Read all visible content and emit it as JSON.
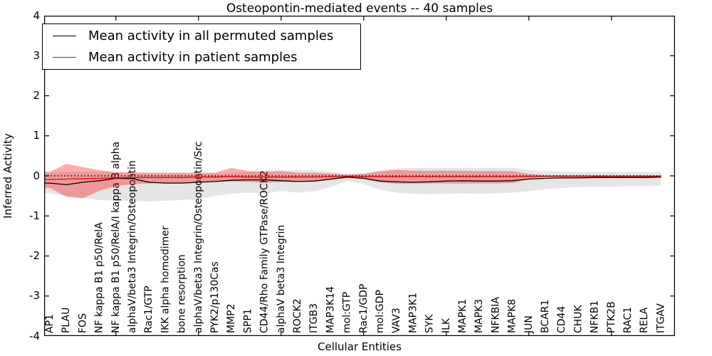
{
  "title": "Osteopontin-mediated events -- 40 samples",
  "axes": {
    "ylabel": "Inferred Activity",
    "xlabel": "Cellular Entities",
    "ytick_labels": [
      "4",
      "3",
      "2",
      "1",
      "0",
      "-1",
      "-2",
      "-3",
      "-4"
    ]
  },
  "legend": {
    "entries": [
      {
        "label": "Mean activity in all permuted samples",
        "color": "#000000"
      },
      {
        "label": "Mean activity in patient samples",
        "color": "#ff0000"
      }
    ]
  },
  "colors": {
    "permuted_line": "#000000",
    "patient_line": "#ff0000",
    "permuted_band": "rgba(0,0,0,0.10)",
    "patient_band": "rgba(255,0,0,0.33)",
    "zero_line": "#000000",
    "background": "#ffffff"
  },
  "chart_data": {
    "type": "line",
    "title": "Osteopontin-mediated events -- 40 samples",
    "xlabel": "Cellular Entities",
    "ylabel": "Inferred Activity",
    "ylim": [
      -4,
      4
    ],
    "yticks": [
      4,
      3,
      2,
      1,
      0,
      -1,
      -2,
      -3,
      -4
    ],
    "ytick_labels": [
      "4",
      "3",
      "2",
      "1",
      "0",
      "-1",
      "-2",
      "-3",
      "-4"
    ],
    "grid": false,
    "legend_position": "upper left",
    "zero_line": {
      "y": 0,
      "style": "dotted",
      "color": "#000000"
    },
    "x_top_tick_indices": [
      4,
      9,
      14,
      19,
      24,
      29,
      34
    ],
    "categories": [
      "AP1",
      "PLAU",
      "FOS",
      "NF kappa B1 p50/RelA",
      "NF kappa B1 p50/RelA/I kappa B alpha",
      "alphaV/beta3 Integrin/Osteopontin",
      "Rac1/GTP",
      "IKK alpha homodimer",
      "bone resorption",
      "alphaV/beta3 Integrin/Osteopontin/Src",
      "PYK2/p130Cas",
      "MMP2",
      "SPP1",
      "CD44/Rho Family GTPase/ROCK2",
      "alphaV beta3 Integrin",
      "ROCK2",
      "ITGB3",
      "MAP3K14",
      "mol:GTP",
      "Rac1/GDP",
      "mol:GDP",
      "VAV3",
      "MAP3K1",
      "SYK",
      "ILK",
      "MAPK1",
      "MAPK3",
      "NFKBIA",
      "MAPK8",
      "JUN",
      "BCAR1",
      "CD44",
      "CHUK",
      "NFKB1",
      "PTK2B",
      "RAC1",
      "RELA",
      "ITGAV"
    ],
    "series": [
      {
        "name": "Mean activity in all permuted samples",
        "color": "#000000",
        "band_color": "rgba(0,0,0,0.10)",
        "values": [
          -0.18,
          -0.22,
          -0.16,
          -0.12,
          -0.06,
          -0.07,
          -0.16,
          -0.18,
          -0.18,
          -0.16,
          -0.14,
          -0.11,
          -0.1,
          -0.1,
          -0.12,
          -0.14,
          -0.13,
          -0.08,
          -0.03,
          -0.06,
          -0.13,
          -0.15,
          -0.16,
          -0.15,
          -0.13,
          -0.12,
          -0.13,
          -0.13,
          -0.12,
          -0.08,
          -0.06,
          -0.05,
          -0.05,
          -0.04,
          -0.04,
          -0.04,
          -0.04,
          -0.03
        ],
        "band_upper": [
          0.07,
          0.1,
          0.1,
          0.1,
          0.08,
          0.06,
          0.05,
          0.05,
          0.05,
          0.06,
          0.06,
          0.07,
          0.1,
          0.13,
          0.14,
          0.14,
          0.14,
          0.1,
          0.05,
          0.07,
          0.15,
          0.18,
          0.2,
          0.2,
          0.2,
          0.2,
          0.2,
          0.2,
          0.2,
          0.15,
          0.12,
          0.11,
          0.1,
          0.1,
          0.1,
          0.1,
          0.1,
          0.09
        ],
        "band_lower": [
          -0.44,
          -0.5,
          -0.55,
          -0.6,
          -0.62,
          -0.62,
          -0.64,
          -0.62,
          -0.6,
          -0.58,
          -0.5,
          -0.45,
          -0.42,
          -0.44,
          -0.38,
          -0.42,
          -0.38,
          -0.28,
          -0.13,
          -0.2,
          -0.35,
          -0.42,
          -0.45,
          -0.46,
          -0.45,
          -0.44,
          -0.45,
          -0.44,
          -0.42,
          -0.38,
          -0.33,
          -0.3,
          -0.28,
          -0.27,
          -0.27,
          -0.26,
          -0.26,
          -0.24
        ]
      },
      {
        "name": "Mean activity in patient samples",
        "color": "#ff0000",
        "band_color": "rgba(255,0,0,0.33)",
        "values": [
          -0.09,
          -0.08,
          -0.07,
          -0.06,
          -0.05,
          -0.04,
          -0.04,
          -0.04,
          -0.04,
          -0.03,
          -0.03,
          -0.02,
          -0.03,
          -0.03,
          -0.03,
          -0.03,
          -0.03,
          -0.02,
          -0.01,
          -0.02,
          -0.02,
          -0.02,
          -0.02,
          -0.02,
          -0.02,
          -0.02,
          -0.02,
          -0.02,
          -0.02,
          -0.01,
          -0.01,
          -0.01,
          -0.01,
          -0.01,
          -0.01,
          -0.01,
          -0.01,
          -0.01
        ],
        "band_upper": [
          0.1,
          0.3,
          0.22,
          0.14,
          0.1,
          0.09,
          0.08,
          0.08,
          0.08,
          0.08,
          0.08,
          0.2,
          0.12,
          0.1,
          0.12,
          0.08,
          0.08,
          0.06,
          0.03,
          0.05,
          0.11,
          0.15,
          0.13,
          0.13,
          0.13,
          0.13,
          0.12,
          0.12,
          0.12,
          0.05,
          0.02,
          0.02,
          0.02,
          0.02,
          0.02,
          0.02,
          0.02,
          0.02
        ],
        "band_lower": [
          -0.3,
          -0.52,
          -0.56,
          -0.37,
          -0.25,
          -0.21,
          -0.19,
          -0.17,
          -0.17,
          -0.16,
          -0.15,
          -0.14,
          -0.15,
          -0.17,
          -0.15,
          -0.15,
          -0.14,
          -0.1,
          -0.05,
          -0.08,
          -0.16,
          -0.2,
          -0.19,
          -0.19,
          -0.19,
          -0.19,
          -0.19,
          -0.19,
          -0.18,
          -0.08,
          -0.03,
          -0.03,
          -0.03,
          -0.03,
          -0.03,
          -0.03,
          -0.03,
          -0.03
        ]
      }
    ]
  }
}
